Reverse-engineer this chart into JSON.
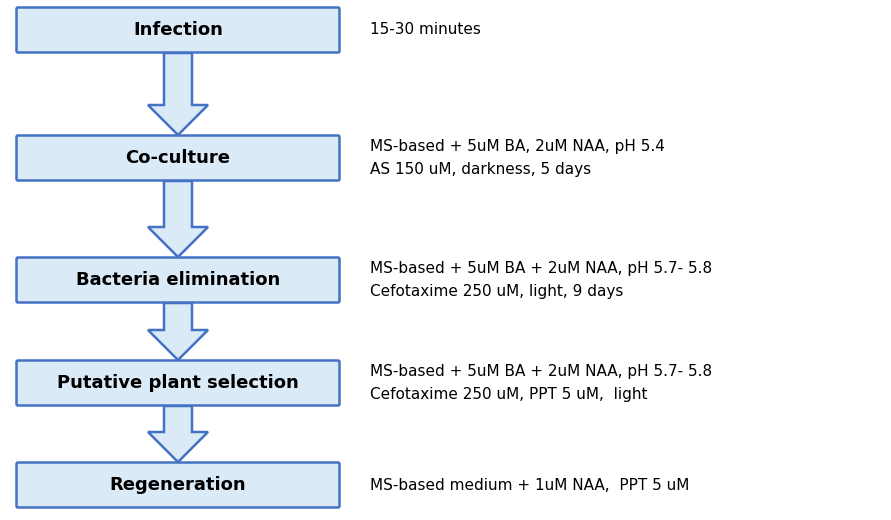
{
  "steps": [
    {
      "label": "Infection",
      "note_lines": [
        "15-30 minutes"
      ]
    },
    {
      "label": "Co-culture",
      "note_lines": [
        "MS-based + 5uM BA, 2uM NAA, pH 5.4",
        "AS 150 uM, darkness, 5 days"
      ]
    },
    {
      "label": "Bacteria elimination",
      "note_lines": [
        "MS-based + 5uM BA + 2uM NAA, pH 5.7- 5.8",
        "Cefotaxime 250 uM, light, 9 days"
      ]
    },
    {
      "label": "Putative plant selection",
      "note_lines": [
        "MS-based + 5uM BA + 2uM NAA, pH 5.7- 5.8",
        "Cefotaxime 250 uM, PPT 5 uM,  light"
      ]
    },
    {
      "label": "Regeneration",
      "note_lines": [
        "MS-based medium + 1uM NAA,  PPT 5 uM"
      ]
    }
  ],
  "box_fill_color": "#daeaf7",
  "box_edge_color": "#4472c4",
  "arrow_fill_color": "#daeaf7",
  "arrow_edge_color": "#4472c4",
  "label_fontsize": 13,
  "note_fontsize": 11,
  "bg_color": "#ffffff",
  "fig_width": 8.91,
  "fig_height": 5.2
}
